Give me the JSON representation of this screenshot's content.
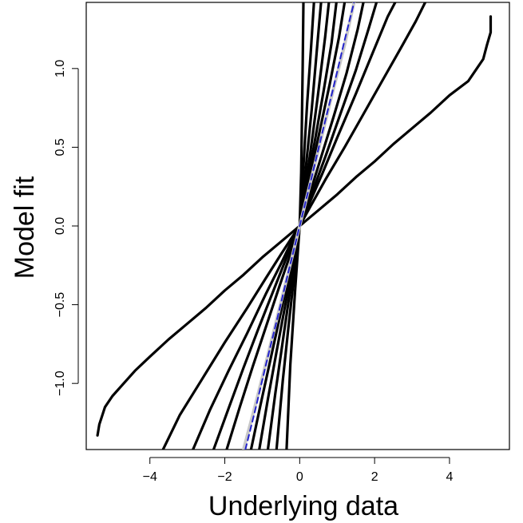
{
  "chart_data": {
    "type": "line",
    "title": "",
    "xlabel": "Underlying data",
    "ylabel": "Model fit",
    "xlim": [
      -5.7,
      5.6
    ],
    "ylim": [
      -1.42,
      1.42
    ],
    "xticks": [
      -4,
      -2,
      0,
      2,
      4
    ],
    "xtick_labels": [
      "−4",
      "−2",
      "0",
      "2",
      "4"
    ],
    "yticks": [
      -1.0,
      -0.5,
      0.0,
      0.5,
      1.0
    ],
    "ytick_labels": [
      "−1.0",
      "−0.5",
      "0.0",
      "0.5",
      "1.0"
    ],
    "grid": false,
    "legend": "none",
    "colors": {
      "curves": "#000000",
      "reference_gray": "#c8c8c8",
      "reference_dashed": "#2222cc"
    },
    "series": [
      {
        "style": "black",
        "x": [
          -5.4,
          -5.35,
          -5.2,
          -5.0,
          -4.7,
          -4.4,
          -4.0,
          -3.5,
          -3.0,
          -2.5,
          -2.0,
          -1.5,
          -1.0,
          -0.5,
          0,
          0.5,
          1.0,
          1.5,
          2.0,
          2.5,
          3.0,
          3.5,
          4.0,
          4.5,
          4.7,
          4.9,
          5.0,
          5.1,
          5.1
        ],
        "y": [
          -1.33,
          -1.26,
          -1.15,
          -1.08,
          -1.0,
          -0.92,
          -0.83,
          -0.72,
          -0.62,
          -0.52,
          -0.41,
          -0.31,
          -0.2,
          -0.1,
          0,
          0.1,
          0.2,
          0.31,
          0.41,
          0.52,
          0.62,
          0.72,
          0.83,
          0.92,
          0.99,
          1.06,
          1.15,
          1.23,
          1.33
        ]
      },
      {
        "style": "black",
        "x": [
          -3.65,
          -3.2,
          -2.6,
          -2.0,
          -1.4,
          -0.9,
          -0.5,
          -0.2,
          0,
          0.3,
          0.7,
          1.2,
          1.7,
          2.2,
          2.7,
          3.1,
          3.35
        ],
        "y": [
          -1.42,
          -1.2,
          -0.97,
          -0.74,
          -0.52,
          -0.33,
          -0.18,
          -0.07,
          0,
          0.13,
          0.3,
          0.5,
          0.71,
          0.92,
          1.13,
          1.3,
          1.42
        ]
      },
      {
        "style": "black",
        "x": [
          -2.85,
          -2.4,
          -1.9,
          -1.4,
          -0.9,
          -0.5,
          -0.2,
          0,
          0.25,
          0.6,
          1.0,
          1.5,
          1.95,
          2.35,
          2.55
        ],
        "y": [
          -1.42,
          -1.17,
          -0.92,
          -0.68,
          -0.43,
          -0.24,
          -0.09,
          0,
          0.14,
          0.33,
          0.56,
          0.84,
          1.1,
          1.33,
          1.42
        ]
      },
      {
        "style": "black",
        "x": [
          -2.3,
          -1.9,
          -1.5,
          -1.1,
          -0.7,
          -0.35,
          0,
          0.3,
          0.7,
          1.1,
          1.5,
          1.85,
          2.05
        ],
        "y": [
          -1.42,
          -1.16,
          -0.9,
          -0.65,
          -0.41,
          -0.2,
          0,
          0.19,
          0.45,
          0.72,
          0.99,
          1.26,
          1.42
        ]
      },
      {
        "style": "black",
        "x": [
          -1.95,
          -1.6,
          -1.25,
          -0.9,
          -0.55,
          -0.25,
          0,
          0.25,
          0.55,
          0.9,
          1.25,
          1.55,
          1.7
        ],
        "y": [
          -1.42,
          -1.15,
          -0.89,
          -0.64,
          -0.39,
          -0.18,
          0,
          0.19,
          0.42,
          0.69,
          0.97,
          1.25,
          1.42
        ]
      },
      {
        "style": "gray",
        "x": [
          -1.5,
          -1.2,
          -0.9,
          -0.6,
          -0.3,
          0,
          0.3,
          0.6,
          0.9,
          1.2,
          1.45
        ],
        "y": [
          -1.42,
          -1.15,
          -0.87,
          -0.58,
          -0.29,
          0,
          0.29,
          0.58,
          0.87,
          1.15,
          1.42
        ]
      },
      {
        "style": "blue-dashed",
        "x": [
          -1.45,
          -1.2,
          -0.9,
          -0.6,
          -0.3,
          0,
          0.3,
          0.6,
          0.9,
          1.2,
          1.45
        ],
        "y": [
          -1.42,
          -1.18,
          -0.88,
          -0.59,
          -0.29,
          0,
          0.29,
          0.59,
          0.88,
          1.18,
          1.42
        ]
      },
      {
        "style": "black",
        "x": [
          -1.3,
          -1.05,
          -0.8,
          -0.55,
          -0.3,
          -0.1,
          0,
          0.1,
          0.3,
          0.55,
          0.8,
          1.05,
          1.2
        ],
        "y": [
          -1.42,
          -1.14,
          -0.87,
          -0.6,
          -0.33,
          -0.11,
          0,
          0.12,
          0.34,
          0.62,
          0.9,
          1.2,
          1.42
        ]
      },
      {
        "style": "black",
        "x": [
          -1.08,
          -0.85,
          -0.62,
          -0.4,
          -0.2,
          0,
          0.2,
          0.42,
          0.64,
          0.85,
          0.98
        ],
        "y": [
          -1.42,
          -1.1,
          -0.8,
          -0.52,
          -0.26,
          0,
          0.27,
          0.56,
          0.86,
          1.16,
          1.42
        ]
      },
      {
        "style": "black",
        "x": [
          -0.85,
          -0.65,
          -0.45,
          -0.25,
          -0.1,
          0,
          0.1,
          0.28,
          0.48,
          0.68,
          0.78
        ],
        "y": [
          -1.42,
          -1.06,
          -0.73,
          -0.4,
          -0.16,
          0,
          0.17,
          0.46,
          0.82,
          1.2,
          1.42
        ]
      },
      {
        "style": "black",
        "x": [
          -0.62,
          -0.45,
          -0.3,
          -0.15,
          0,
          0.15,
          0.32,
          0.48,
          0.57
        ],
        "y": [
          -1.42,
          -0.98,
          -0.64,
          -0.32,
          0,
          0.34,
          0.74,
          1.18,
          1.42
        ]
      },
      {
        "style": "black",
        "x": [
          -0.35,
          -0.25,
          -0.12,
          0,
          0.08,
          0.2,
          0.3,
          0.38
        ],
        "y": [
          -1.42,
          -0.88,
          -0.4,
          0,
          0.3,
          0.78,
          1.12,
          1.42
        ]
      },
      {
        "style": "black",
        "x": [
          -0.12,
          -0.06,
          0,
          0.04,
          0.08,
          0.1
        ],
        "y": [
          -0.28,
          -0.12,
          0,
          0.34,
          1.02,
          1.42
        ]
      }
    ]
  }
}
